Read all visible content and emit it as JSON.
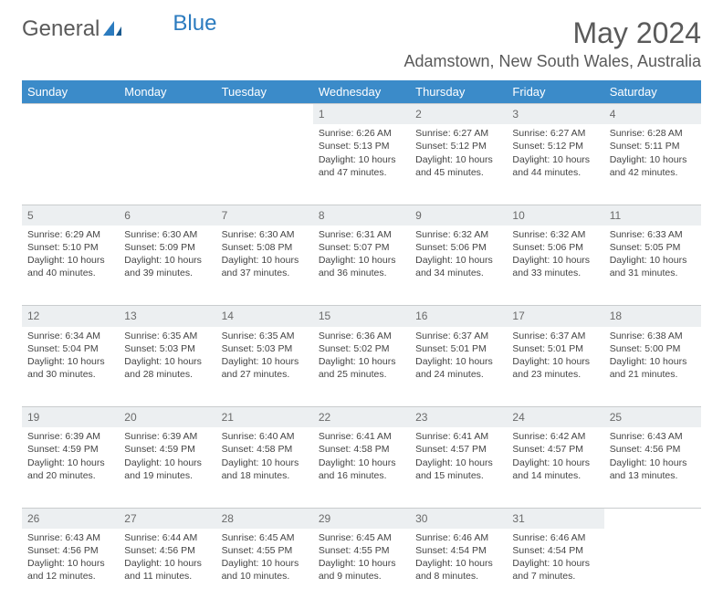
{
  "brand": {
    "word1": "General",
    "word2": "Blue"
  },
  "header": {
    "title": "May 2024",
    "location": "Adamstown, New South Wales, Australia"
  },
  "colors": {
    "header_bg": "#3b8bc9",
    "header_text": "#ffffff",
    "daynum_bg": "#eceff1",
    "border": "#c9ccce",
    "body_text": "#444444",
    "title_text": "#5a5a5a",
    "brand_accent": "#2b7bbf"
  },
  "dayNames": [
    "Sunday",
    "Monday",
    "Tuesday",
    "Wednesday",
    "Thursday",
    "Friday",
    "Saturday"
  ],
  "weeks": [
    [
      null,
      null,
      null,
      {
        "n": "1",
        "sr": "6:26 AM",
        "ss": "5:13 PM",
        "dl": "10 hours and 47 minutes."
      },
      {
        "n": "2",
        "sr": "6:27 AM",
        "ss": "5:12 PM",
        "dl": "10 hours and 45 minutes."
      },
      {
        "n": "3",
        "sr": "6:27 AM",
        "ss": "5:12 PM",
        "dl": "10 hours and 44 minutes."
      },
      {
        "n": "4",
        "sr": "6:28 AM",
        "ss": "5:11 PM",
        "dl": "10 hours and 42 minutes."
      }
    ],
    [
      {
        "n": "5",
        "sr": "6:29 AM",
        "ss": "5:10 PM",
        "dl": "10 hours and 40 minutes."
      },
      {
        "n": "6",
        "sr": "6:30 AM",
        "ss": "5:09 PM",
        "dl": "10 hours and 39 minutes."
      },
      {
        "n": "7",
        "sr": "6:30 AM",
        "ss": "5:08 PM",
        "dl": "10 hours and 37 minutes."
      },
      {
        "n": "8",
        "sr": "6:31 AM",
        "ss": "5:07 PM",
        "dl": "10 hours and 36 minutes."
      },
      {
        "n": "9",
        "sr": "6:32 AM",
        "ss": "5:06 PM",
        "dl": "10 hours and 34 minutes."
      },
      {
        "n": "10",
        "sr": "6:32 AM",
        "ss": "5:06 PM",
        "dl": "10 hours and 33 minutes."
      },
      {
        "n": "11",
        "sr": "6:33 AM",
        "ss": "5:05 PM",
        "dl": "10 hours and 31 minutes."
      }
    ],
    [
      {
        "n": "12",
        "sr": "6:34 AM",
        "ss": "5:04 PM",
        "dl": "10 hours and 30 minutes."
      },
      {
        "n": "13",
        "sr": "6:35 AM",
        "ss": "5:03 PM",
        "dl": "10 hours and 28 minutes."
      },
      {
        "n": "14",
        "sr": "6:35 AM",
        "ss": "5:03 PM",
        "dl": "10 hours and 27 minutes."
      },
      {
        "n": "15",
        "sr": "6:36 AM",
        "ss": "5:02 PM",
        "dl": "10 hours and 25 minutes."
      },
      {
        "n": "16",
        "sr": "6:37 AM",
        "ss": "5:01 PM",
        "dl": "10 hours and 24 minutes."
      },
      {
        "n": "17",
        "sr": "6:37 AM",
        "ss": "5:01 PM",
        "dl": "10 hours and 23 minutes."
      },
      {
        "n": "18",
        "sr": "6:38 AM",
        "ss": "5:00 PM",
        "dl": "10 hours and 21 minutes."
      }
    ],
    [
      {
        "n": "19",
        "sr": "6:39 AM",
        "ss": "4:59 PM",
        "dl": "10 hours and 20 minutes."
      },
      {
        "n": "20",
        "sr": "6:39 AM",
        "ss": "4:59 PM",
        "dl": "10 hours and 19 minutes."
      },
      {
        "n": "21",
        "sr": "6:40 AM",
        "ss": "4:58 PM",
        "dl": "10 hours and 18 minutes."
      },
      {
        "n": "22",
        "sr": "6:41 AM",
        "ss": "4:58 PM",
        "dl": "10 hours and 16 minutes."
      },
      {
        "n": "23",
        "sr": "6:41 AM",
        "ss": "4:57 PM",
        "dl": "10 hours and 15 minutes."
      },
      {
        "n": "24",
        "sr": "6:42 AM",
        "ss": "4:57 PM",
        "dl": "10 hours and 14 minutes."
      },
      {
        "n": "25",
        "sr": "6:43 AM",
        "ss": "4:56 PM",
        "dl": "10 hours and 13 minutes."
      }
    ],
    [
      {
        "n": "26",
        "sr": "6:43 AM",
        "ss": "4:56 PM",
        "dl": "10 hours and 12 minutes."
      },
      {
        "n": "27",
        "sr": "6:44 AM",
        "ss": "4:56 PM",
        "dl": "10 hours and 11 minutes."
      },
      {
        "n": "28",
        "sr": "6:45 AM",
        "ss": "4:55 PM",
        "dl": "10 hours and 10 minutes."
      },
      {
        "n": "29",
        "sr": "6:45 AM",
        "ss": "4:55 PM",
        "dl": "10 hours and 9 minutes."
      },
      {
        "n": "30",
        "sr": "6:46 AM",
        "ss": "4:54 PM",
        "dl": "10 hours and 8 minutes."
      },
      {
        "n": "31",
        "sr": "6:46 AM",
        "ss": "4:54 PM",
        "dl": "10 hours and 7 minutes."
      },
      null
    ]
  ],
  "labels": {
    "sunrise": "Sunrise: ",
    "sunset": "Sunset: ",
    "daylight": "Daylight: "
  }
}
